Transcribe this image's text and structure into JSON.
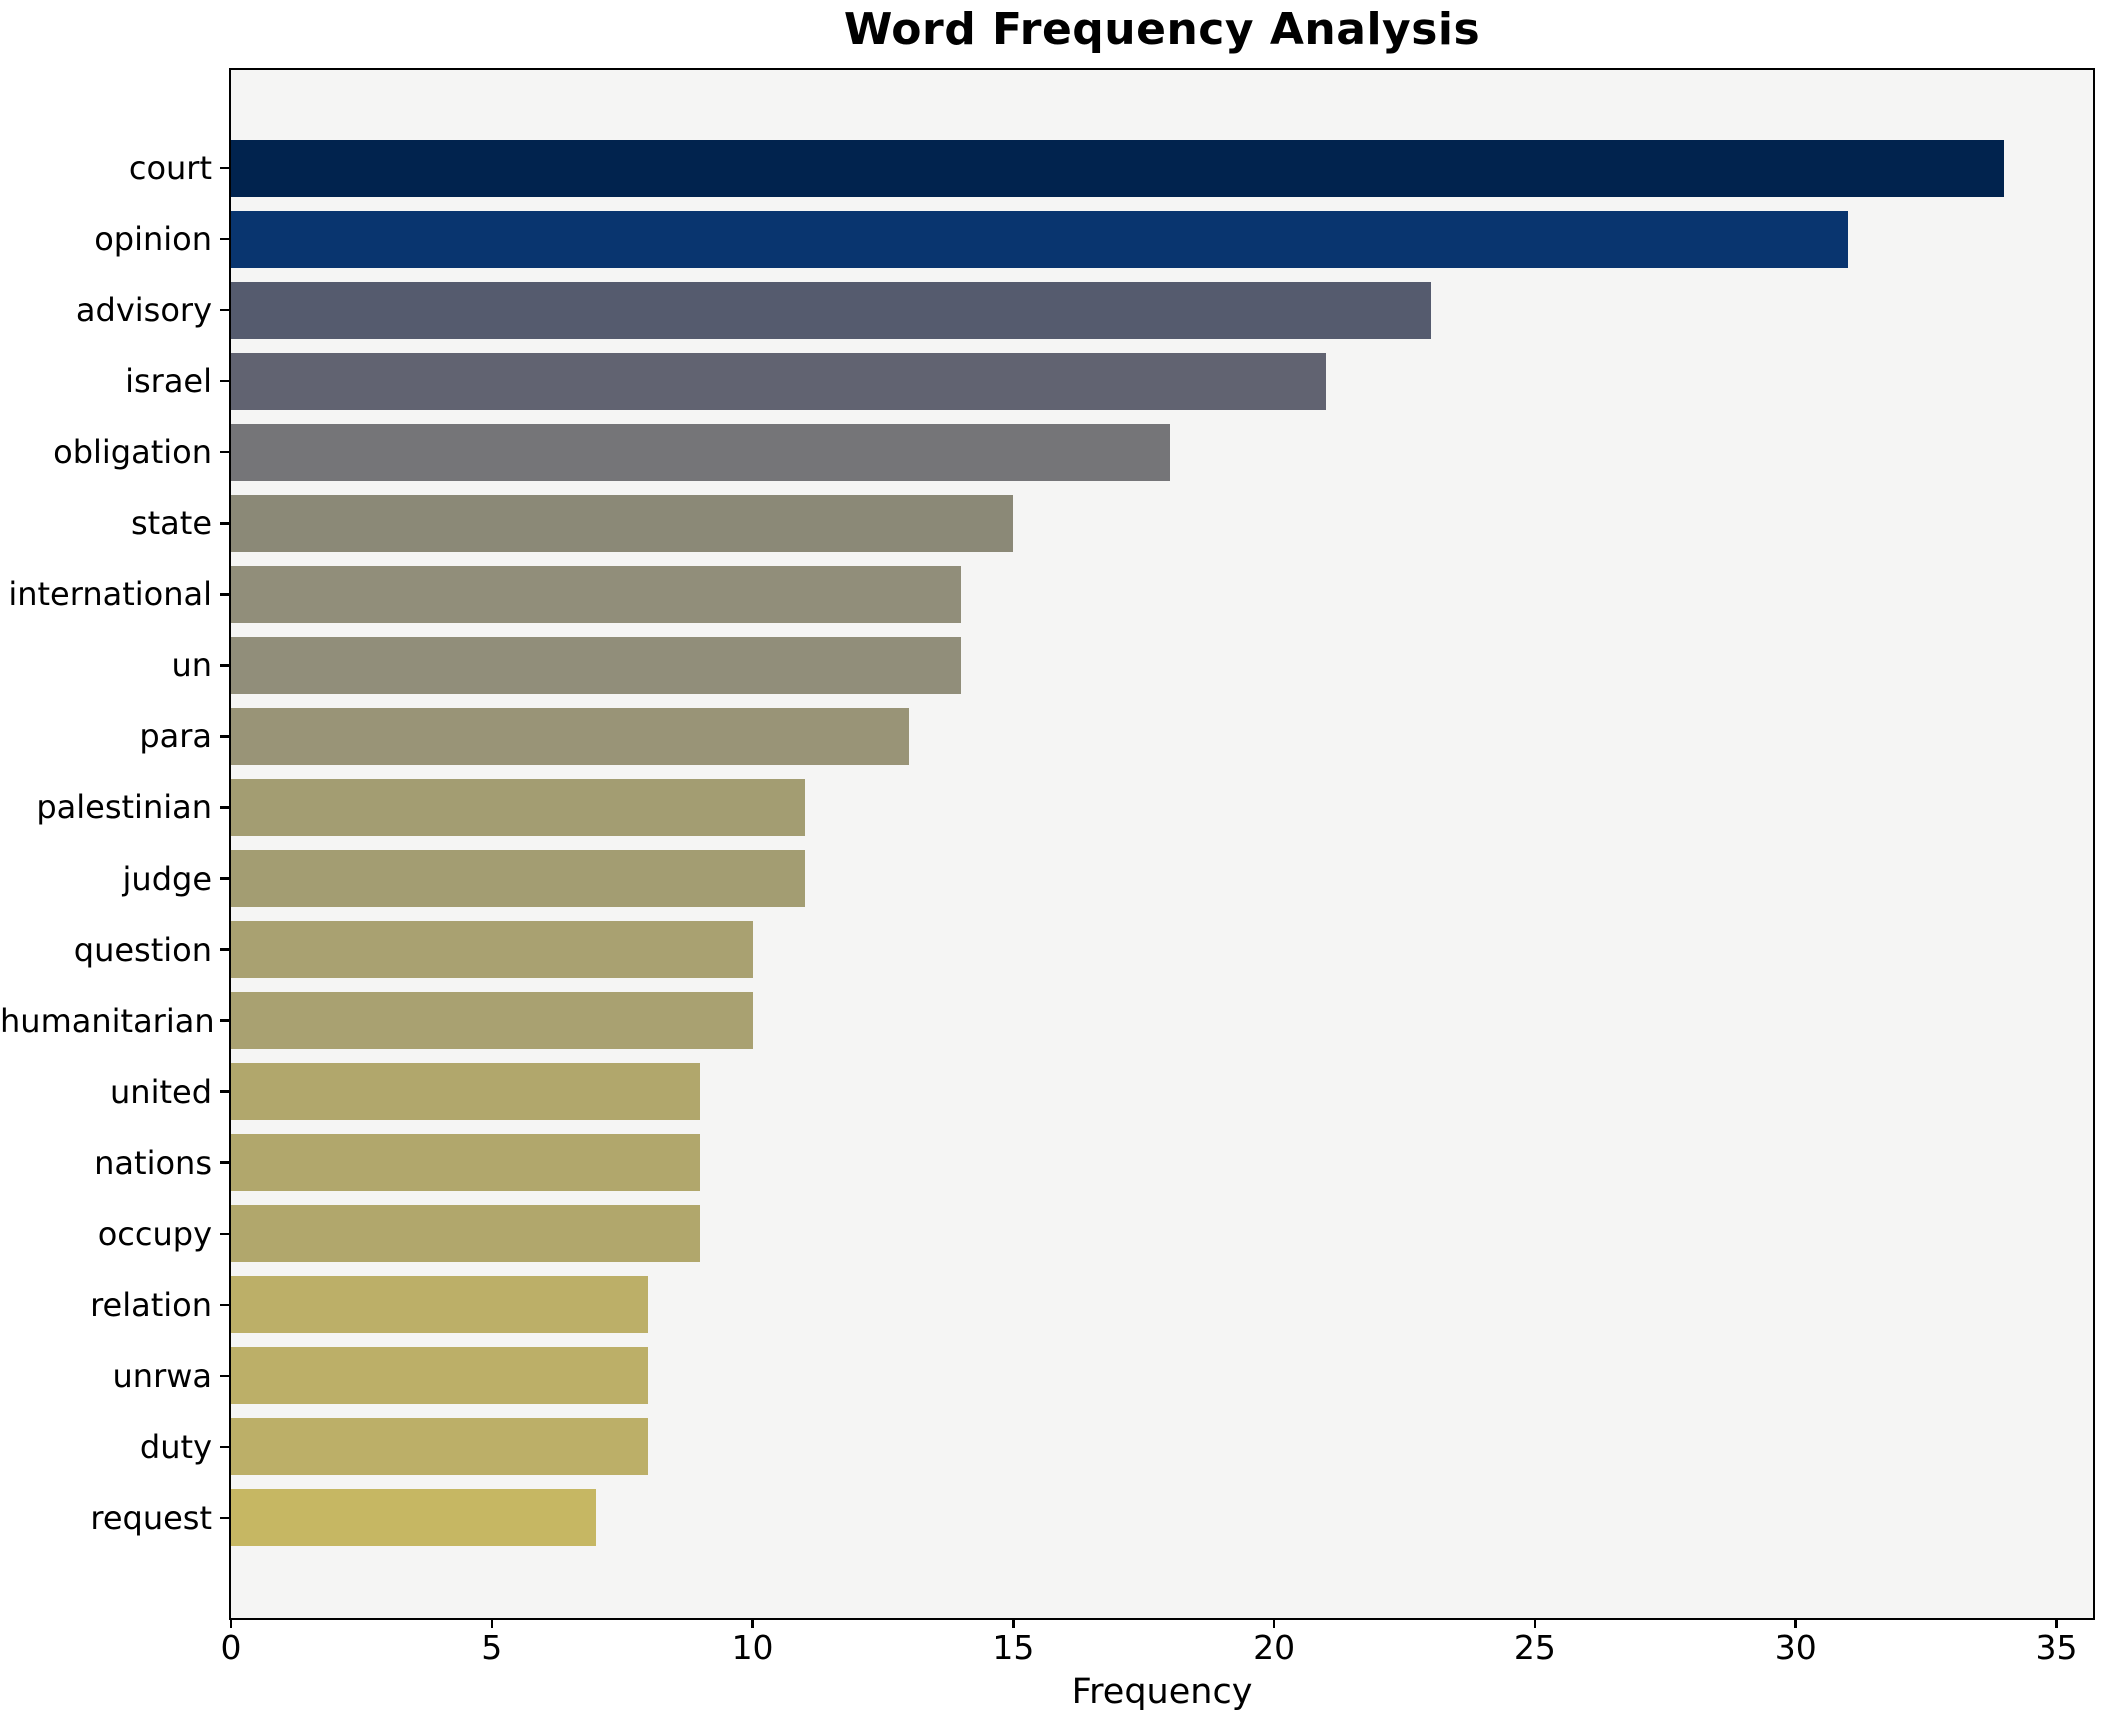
{
  "title": "Word Frequency Analysis",
  "chart_data": {
    "type": "bar",
    "orientation": "horizontal",
    "title": "Word Frequency Analysis",
    "xlabel": "Frequency",
    "ylabel": "",
    "categories": [
      "court",
      "opinion",
      "advisory",
      "israel",
      "obligation",
      "state",
      "international",
      "un",
      "para",
      "palestinian",
      "judge",
      "question",
      "humanitarian",
      "united",
      "nations",
      "occupy",
      "relation",
      "unrwa",
      "duty",
      "request"
    ],
    "values": [
      34,
      31,
      23,
      21,
      18,
      15,
      14,
      14,
      13,
      11,
      11,
      10,
      10,
      9,
      9,
      9,
      8,
      8,
      8,
      7
    ],
    "bar_colors": [
      "#01234e",
      "#09356f",
      "#555b6e",
      "#616371",
      "#757578",
      "#8b8977",
      "#918e7a",
      "#918e7a",
      "#999477",
      "#a39d72",
      "#a39d72",
      "#a9a171",
      "#a9a171",
      "#b1a76c",
      "#b1a76c",
      "#b1a76c",
      "#bcaf68",
      "#bcaf68",
      "#bcaf68",
      "#c6b763"
    ],
    "xticks": [
      0,
      5,
      10,
      15,
      20,
      25,
      30,
      35
    ],
    "xlim": [
      0,
      35.7
    ],
    "grid": false,
    "legend_position": "none",
    "colormap": "cividis",
    "plot_background": "#f5f5f4",
    "figure_background": "#ffffff",
    "spine_color": "#000000"
  }
}
